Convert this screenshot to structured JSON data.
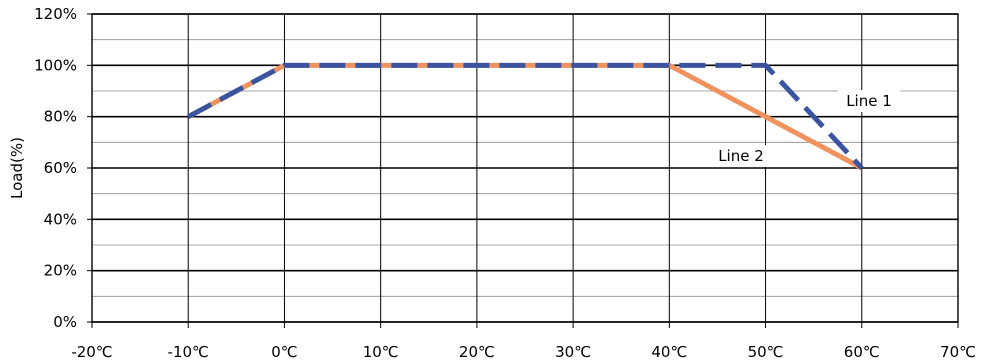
{
  "chart_data": {
    "type": "line",
    "title": "",
    "xlabel": "",
    "ylabel": "Load(%)",
    "x_ticks": [
      "-20℃",
      "-10℃",
      "0℃",
      "10℃",
      "20℃",
      "30℃",
      "40℃",
      "50℃",
      "60℃",
      "70℃"
    ],
    "y_ticks": [
      "0%",
      "20%",
      "40%",
      "60%",
      "80%",
      "100%",
      "120%"
    ],
    "xlim": [
      -20,
      70
    ],
    "ylim": [
      0,
      120
    ],
    "grid": true,
    "series": [
      {
        "name": "Line 1",
        "color": "#3b54a0",
        "style": "dashed",
        "x": [
          -10,
          0,
          40,
          50,
          60
        ],
        "y": [
          80,
          100,
          100,
          100,
          60
        ]
      },
      {
        "name": "Line 2",
        "color": "#f0925e",
        "style": "solid",
        "x": [
          -10,
          0,
          40,
          60
        ],
        "y": [
          80,
          100,
          100,
          60
        ]
      }
    ]
  }
}
